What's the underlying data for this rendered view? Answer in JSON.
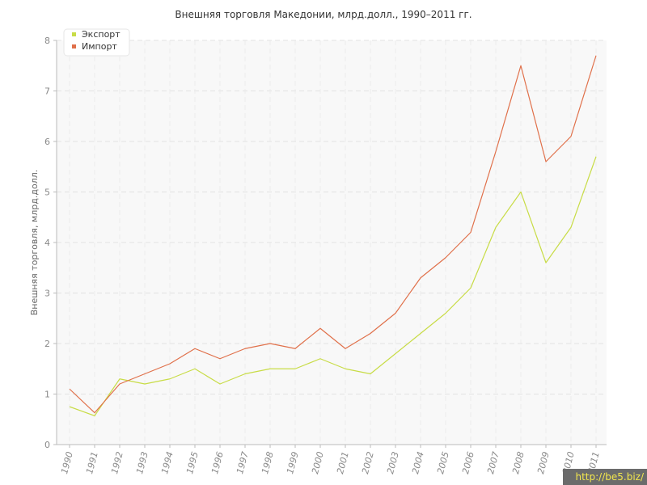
{
  "chart_data": {
    "type": "line",
    "title": "Внешняя торговля Македонии, млрд.долл., 1990–2011 гг.",
    "xlabel": "",
    "ylabel": "Внешняя торговля, млрд.долл.",
    "x": [
      "1990",
      "1991",
      "1992",
      "1993",
      "1994",
      "1995",
      "1996",
      "1997",
      "1998",
      "1999",
      "2000",
      "2001",
      "2002",
      "2003",
      "2004",
      "2005",
      "2006",
      "2007",
      "2008",
      "2009",
      "2010",
      "2011"
    ],
    "ylim": [
      0,
      8
    ],
    "yticks": [
      "0",
      "1",
      "2",
      "3",
      "4",
      "5",
      "6",
      "7",
      "8"
    ],
    "grid": true,
    "legend_position": "top-left",
    "series": [
      {
        "name": "Экспорт",
        "color": "#c8dc46",
        "values": [
          0.75,
          0.57,
          1.3,
          1.2,
          1.3,
          1.5,
          1.2,
          1.4,
          1.5,
          1.5,
          1.7,
          1.5,
          1.4,
          1.8,
          2.2,
          2.6,
          3.1,
          4.3,
          5.0,
          3.6,
          4.3,
          5.7
        ]
      },
      {
        "name": "Импорт",
        "color": "#e0704a",
        "values": [
          1.1,
          0.63,
          1.2,
          1.4,
          1.6,
          1.9,
          1.7,
          1.9,
          2.0,
          1.9,
          2.3,
          1.9,
          2.2,
          2.6,
          3.3,
          3.7,
          4.2,
          5.8,
          7.5,
          5.6,
          6.1,
          7.7
        ]
      }
    ]
  },
  "watermark": "http://be5.biz/"
}
